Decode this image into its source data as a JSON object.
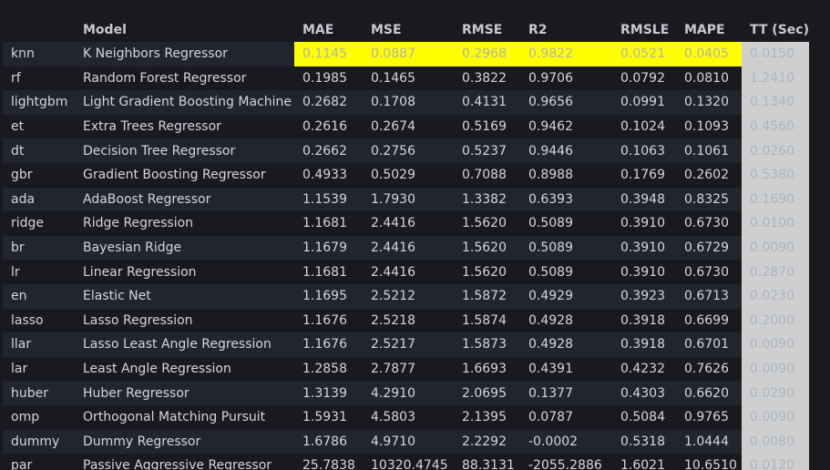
{
  "columns": [
    "",
    "Model",
    "MAE",
    "MSE",
    "RMSE",
    "R2",
    "RMSLE",
    "MAPE",
    "TT (Sec)"
  ],
  "rows": [
    {
      "id": "knn",
      "model": "K Neighbors Regressor",
      "mae": "0.1145",
      "mse": "0.0887",
      "rmse": "0.2968",
      "r2": "0.9822",
      "rmsle": "0.0521",
      "mape": "0.0405",
      "tt": "0.0150"
    },
    {
      "id": "rf",
      "model": "Random Forest Regressor",
      "mae": "0.1985",
      "mse": "0.1465",
      "rmse": "0.3822",
      "r2": "0.9706",
      "rmsle": "0.0792",
      "mape": "0.0810",
      "tt": "1.2410"
    },
    {
      "id": "lightgbm",
      "model": "Light Gradient Boosting Machine",
      "mae": "0.2682",
      "mse": "0.1708",
      "rmse": "0.4131",
      "r2": "0.9656",
      "rmsle": "0.0991",
      "mape": "0.1320",
      "tt": "0.1340"
    },
    {
      "id": "et",
      "model": "Extra Trees Regressor",
      "mae": "0.2616",
      "mse": "0.2674",
      "rmse": "0.5169",
      "r2": "0.9462",
      "rmsle": "0.1024",
      "mape": "0.1093",
      "tt": "0.4560"
    },
    {
      "id": "dt",
      "model": "Decision Tree Regressor",
      "mae": "0.2662",
      "mse": "0.2756",
      "rmse": "0.5237",
      "r2": "0.9446",
      "rmsle": "0.1063",
      "mape": "0.1061",
      "tt": "0.0260"
    },
    {
      "id": "gbr",
      "model": "Gradient Boosting Regressor",
      "mae": "0.4933",
      "mse": "0.5029",
      "rmse": "0.7088",
      "r2": "0.8988",
      "rmsle": "0.1769",
      "mape": "0.2602",
      "tt": "0.5380"
    },
    {
      "id": "ada",
      "model": "AdaBoost Regressor",
      "mae": "1.1539",
      "mse": "1.7930",
      "rmse": "1.3382",
      "r2": "0.6393",
      "rmsle": "0.3948",
      "mape": "0.8325",
      "tt": "0.1690"
    },
    {
      "id": "ridge",
      "model": "Ridge Regression",
      "mae": "1.1681",
      "mse": "2.4416",
      "rmse": "1.5620",
      "r2": "0.5089",
      "rmsle": "0.3910",
      "mape": "0.6730",
      "tt": "0.0100"
    },
    {
      "id": "br",
      "model": "Bayesian Ridge",
      "mae": "1.1679",
      "mse": "2.4416",
      "rmse": "1.5620",
      "r2": "0.5089",
      "rmsle": "0.3910",
      "mape": "0.6729",
      "tt": "0.0090"
    },
    {
      "id": "lr",
      "model": "Linear Regression",
      "mae": "1.1681",
      "mse": "2.4416",
      "rmse": "1.5620",
      "r2": "0.5089",
      "rmsle": "0.3910",
      "mape": "0.6730",
      "tt": "0.2870"
    },
    {
      "id": "en",
      "model": "Elastic Net",
      "mae": "1.1695",
      "mse": "2.5212",
      "rmse": "1.5872",
      "r2": "0.4929",
      "rmsle": "0.3923",
      "mape": "0.6713",
      "tt": "0.0230"
    },
    {
      "id": "lasso",
      "model": "Lasso Regression",
      "mae": "1.1676",
      "mse": "2.5218",
      "rmse": "1.5874",
      "r2": "0.4928",
      "rmsle": "0.3918",
      "mape": "0.6699",
      "tt": "0.2000"
    },
    {
      "id": "llar",
      "model": "Lasso Least Angle Regression",
      "mae": "1.1676",
      "mse": "2.5217",
      "rmse": "1.5873",
      "r2": "0.4928",
      "rmsle": "0.3918",
      "mape": "0.6701",
      "tt": "0.0090"
    },
    {
      "id": "lar",
      "model": "Least Angle Regression",
      "mae": "1.2858",
      "mse": "2.7877",
      "rmse": "1.6693",
      "r2": "0.4391",
      "rmsle": "0.4232",
      "mape": "0.7626",
      "tt": "0.0090"
    },
    {
      "id": "huber",
      "model": "Huber Regressor",
      "mae": "1.3139",
      "mse": "4.2910",
      "rmse": "2.0695",
      "r2": "0.1377",
      "rmsle": "0.4303",
      "mape": "0.6620",
      "tt": "0.0290"
    },
    {
      "id": "omp",
      "model": "Orthogonal Matching Pursuit",
      "mae": "1.5931",
      "mse": "4.5803",
      "rmse": "2.1395",
      "r2": "0.0787",
      "rmsle": "0.5084",
      "mape": "0.9765",
      "tt": "0.0090"
    },
    {
      "id": "dummy",
      "model": "Dummy Regressor",
      "mae": "1.6786",
      "mse": "4.9710",
      "rmse": "2.2292",
      "r2": "-0.0002",
      "rmsle": "0.5318",
      "mape": "1.0444",
      "tt": "0.0080"
    },
    {
      "id": "par",
      "model": "Passive Aggressive Regressor",
      "mae": "25.7838",
      "mse": "10320.4745",
      "rmse": "88.3131",
      "r2": "-2055.2886",
      "rmsle": "1.6021",
      "mape": "10.6510",
      "tt": "0.0120"
    }
  ],
  "colors": {
    "background": "#181a1f",
    "row_stripe": "#22252b",
    "best_highlight": "#ffff00",
    "tt_column_bg": "#cfcfcf"
  }
}
